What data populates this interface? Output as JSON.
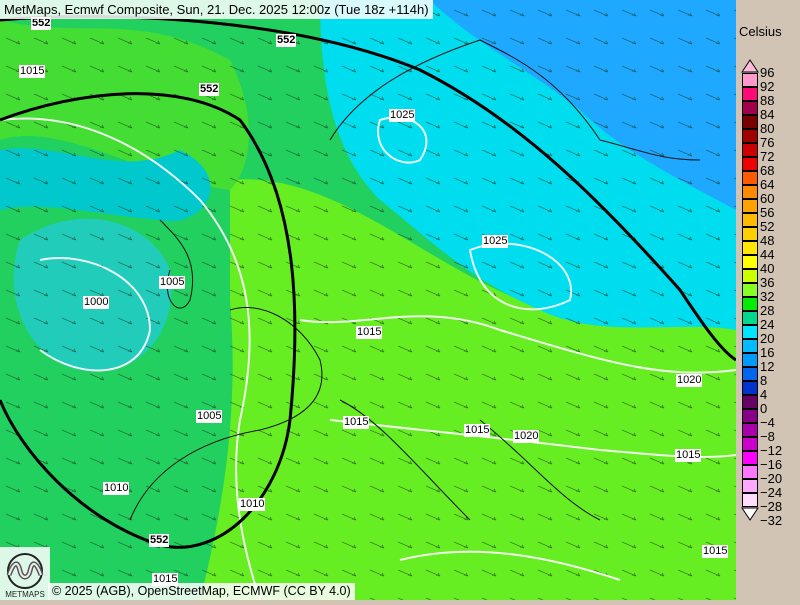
{
  "header": {
    "title": "MetMaps, Ecmwf Composite, Sun, 21. Dec. 2025 12:00z (Tue 18z +114h)"
  },
  "footer": {
    "copyright": "© 2025 (AGB), OpenStreetMap, ECMWF (CC BY 4.0)",
    "logo_text": "METMAPS"
  },
  "legend": {
    "unit": "Celsius",
    "labels": [
      "96",
      "92",
      "88",
      "84",
      "80",
      "76",
      "72",
      "68",
      "64",
      "60",
      "56",
      "52",
      "48",
      "44",
      "40",
      "36",
      "32",
      "28",
      "24",
      "20",
      "16",
      "12",
      "8",
      "4",
      "0",
      "−4",
      "−8",
      "−12",
      "−16",
      "−20",
      "−24",
      "−28",
      "−32"
    ],
    "colors": [
      "#ff99cc",
      "#ff0a78",
      "#a0004c",
      "#7a0000",
      "#a00000",
      "#cc0000",
      "#ee0000",
      "#ff5a00",
      "#ff8a00",
      "#ffa200",
      "#ffbb00",
      "#ffd000",
      "#ffe600",
      "#ffff00",
      "#ccff00",
      "#88ff22",
      "#00ee00",
      "#00d890",
      "#00e5ff",
      "#00bbff",
      "#0099ff",
      "#0066ee",
      "#0033cc",
      "#660066",
      "#880088",
      "#aa00aa",
      "#cc00cc",
      "#ff00ff",
      "#ff77ff",
      "#ffaaff",
      "#ffddff"
    ],
    "top_arrow_color": "#ffbbdd",
    "bottom_arrow_color": "#ffffff"
  },
  "map": {
    "contour_labels": [
      "552",
      "552",
      "552",
      "552",
      "1015",
      "1025",
      "1025",
      "1005",
      "1000",
      "1015",
      "1020",
      "1005",
      "1015",
      "1015",
      "1020",
      "1015",
      "1010",
      "1010",
      "1015",
      "1015"
    ]
  }
}
